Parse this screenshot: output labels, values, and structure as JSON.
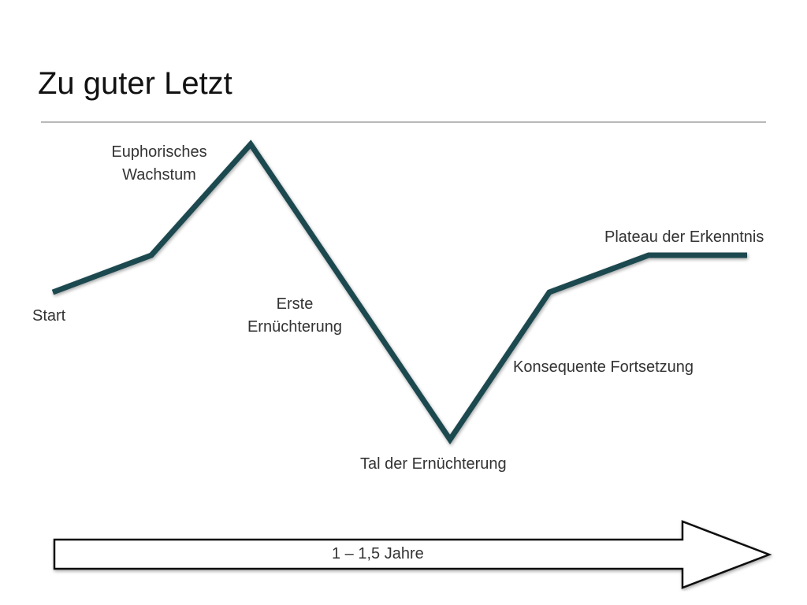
{
  "slide": {
    "title": "Zu guter Letzt"
  },
  "curve": {
    "color": "#1f4a4f",
    "points": [
      {
        "phase": "start",
        "label": "Start"
      },
      {
        "phase": "growth",
        "label": ""
      },
      {
        "phase": "peak",
        "label": "Euphorisches\nWachstum"
      },
      {
        "phase": "disillusion",
        "label": "Erste\nErnüchterung"
      },
      {
        "phase": "trough",
        "label": "Tal der Ernüchterung"
      },
      {
        "phase": "continuation",
        "label": "Konsequente Fortsetzung"
      },
      {
        "phase": "plateau-start",
        "label": ""
      },
      {
        "phase": "plateau",
        "label": "Plateau der Erkenntnis"
      }
    ]
  },
  "labels": {
    "euphoric": "Euphorisches\nWachstum",
    "start": "Start",
    "erste": "Erste\nErnüchterung",
    "plateau": "Plateau der Erkenntnis",
    "konsequent": "Konsequente Fortsetzung",
    "tal": "Tal der Ernüchterung"
  },
  "timeline": {
    "duration_label": "1 – 1,5 Jahre",
    "arrow_icon": "right-arrow-icon"
  }
}
